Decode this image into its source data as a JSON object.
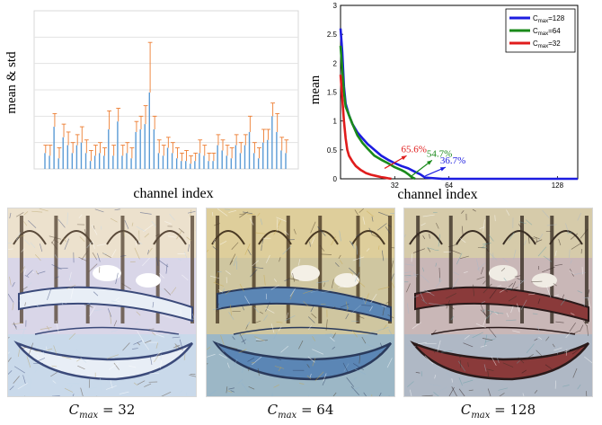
{
  "chart_data": [
    {
      "type": "bar",
      "panel": "left",
      "title": "",
      "xlabel": "channel index",
      "ylabel": "mean & std",
      "ylim": [
        0,
        6
      ],
      "grid": true,
      "colors": {
        "mean": "#5b9bd5",
        "std": "#ed7d31"
      },
      "series": [
        {
          "values": [
            0.6,
            0.5,
            1.6,
            0.4,
            1.2,
            0.9,
            0.6,
            0.9,
            1.0,
            0.6,
            0.3,
            0.5,
            0.6,
            0.5,
            1.5,
            0.5,
            1.8,
            0.5,
            0.6,
            0.4,
            1.4,
            1.5,
            1.7,
            2.9,
            1.5,
            0.6,
            0.5,
            0.8,
            0.6,
            0.4,
            0.3,
            0.3,
            0.2,
            0.3,
            0.6,
            0.5,
            0.3,
            0.3,
            0.9,
            0.7,
            0.5,
            0.4,
            0.9,
            0.6,
            0.9,
            1.4,
            0.6,
            0.4,
            1.0,
            1.1,
            2.0,
            1.4,
            0.7,
            0.6
          ]
        },
        {
          "values": [
            0.3,
            0.4,
            0.5,
            0.4,
            0.5,
            0.5,
            0.4,
            0.4,
            0.6,
            0.5,
            0.4,
            0.4,
            0.4,
            0.3,
            0.7,
            0.4,
            0.5,
            0.4,
            0.4,
            0.4,
            0.4,
            0.5,
            0.7,
            1.9,
            0.5,
            0.5,
            0.4,
            0.4,
            0.4,
            0.4,
            0.3,
            0.4,
            0.3,
            0.3,
            0.5,
            0.4,
            0.3,
            0.3,
            0.4,
            0.4,
            0.4,
            0.4,
            0.4,
            0.4,
            0.4,
            0.6,
            0.4,
            0.4,
            0.5,
            0.4,
            0.5,
            0.7,
            0.5,
            0.5
          ]
        }
      ]
    },
    {
      "type": "line",
      "panel": "right",
      "title": "",
      "xlabel": "channel index",
      "ylabel": "mean",
      "xlim": [
        0,
        140
      ],
      "ylim": [
        0,
        3
      ],
      "xticks": [
        "32",
        "64",
        "128"
      ],
      "yticks": [
        "0",
        "0.5",
        "1",
        "1.5",
        "2",
        "2.5",
        "3"
      ],
      "legend_position": "top-right",
      "series": [
        {
          "name": "C_max=128",
          "legend_main": "C",
          "legend_sub": "max",
          "legend_rest": "=128",
          "color": "#1c1ce0",
          "x": [
            0,
            1,
            2,
            3,
            5,
            7,
            10,
            13,
            16,
            20,
            24,
            28,
            32,
            36,
            40,
            44,
            47,
            50,
            60,
            80,
            100,
            128,
            140
          ],
          "y": [
            2.6,
            2.2,
            1.6,
            1.3,
            1.1,
            0.95,
            0.8,
            0.7,
            0.6,
            0.5,
            0.4,
            0.33,
            0.27,
            0.22,
            0.18,
            0.12,
            0.08,
            0.02,
            0,
            0,
            0,
            0,
            0
          ]
        },
        {
          "name": "C_max=64",
          "legend_main": "C",
          "legend_sub": "max",
          "legend_rest": "=64",
          "color": "#1a8a1a",
          "x": [
            0,
            1,
            2,
            3,
            5,
            7,
            10,
            13,
            16,
            20,
            24,
            28,
            32,
            36,
            38,
            40,
            42,
            44
          ],
          "y": [
            2.3,
            1.9,
            1.5,
            1.25,
            1.1,
            0.95,
            0.75,
            0.62,
            0.52,
            0.4,
            0.33,
            0.27,
            0.2,
            0.15,
            0.12,
            0.08,
            0.03,
            0
          ]
        },
        {
          "name": "C_max=32",
          "legend_main": "C",
          "legend_sub": "max",
          "legend_rest": "=32",
          "color": "#e01c1c",
          "x": [
            0,
            1,
            2,
            3,
            4,
            5,
            7,
            9,
            12,
            15,
            18,
            21,
            24,
            26,
            28,
            30
          ],
          "y": [
            1.8,
            1.4,
            1.0,
            0.7,
            0.5,
            0.4,
            0.3,
            0.22,
            0.15,
            0.1,
            0.07,
            0.05,
            0.03,
            0.02,
            0.01,
            0
          ]
        }
      ],
      "annotations": [
        {
          "text": "65.6%",
          "color": "#e01c1c",
          "arrow_from": [
            26,
            0.18
          ],
          "arrow_to": [
            39,
            0.4
          ]
        },
        {
          "text": "54.7%",
          "color": "#1a8a1a",
          "arrow_from": [
            42,
            0.05
          ],
          "arrow_to": [
            54,
            0.32
          ]
        },
        {
          "text": "36.7%",
          "color": "#1c1ce0",
          "arrow_from": [
            50,
            0.05
          ],
          "arrow_to": [
            62,
            0.2
          ]
        }
      ]
    }
  ],
  "images": [
    {
      "name": "stylized-gondola-32",
      "caption_main": "C",
      "caption_sub": "max",
      "caption_rest": " = 32"
    },
    {
      "name": "stylized-gondola-64",
      "caption_main": "C",
      "caption_sub": "max",
      "caption_rest": " = 64"
    },
    {
      "name": "stylized-gondola-128",
      "caption_main": "C",
      "caption_sub": "max",
      "caption_rest": " = 128"
    }
  ]
}
